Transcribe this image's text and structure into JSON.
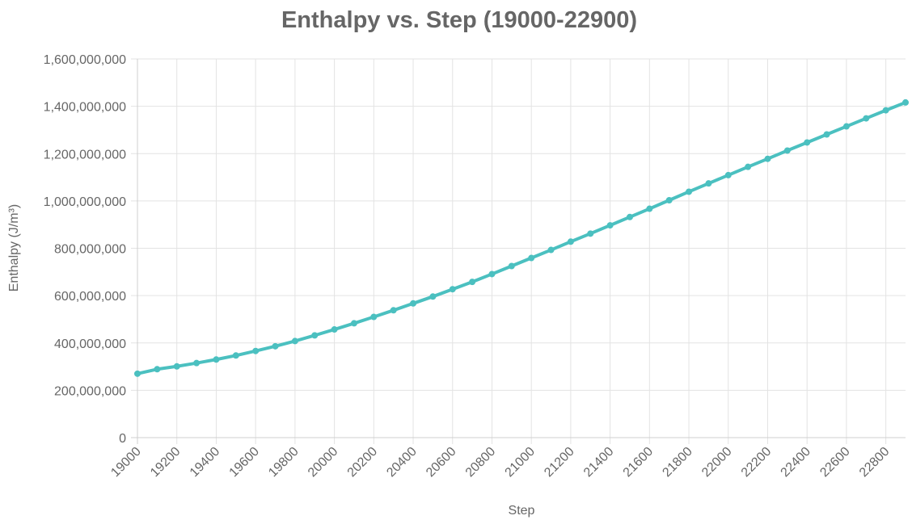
{
  "chart_data": {
    "type": "line",
    "title": "Enthalpy vs. Step (19000-22900)",
    "xlabel": "Step",
    "ylabel": "Enthalpy (J/m³)",
    "xlim": [
      19000,
      22900
    ],
    "ylim": [
      0,
      1600000000
    ],
    "grid": true,
    "legend": "none",
    "x_ticks": [
      "19000",
      "19200",
      "19400",
      "19600",
      "19800",
      "20000",
      "20200",
      "20400",
      "20600",
      "20800",
      "21000",
      "21200",
      "21400",
      "21600",
      "21800",
      "22000",
      "22200",
      "22400",
      "22600",
      "22800"
    ],
    "y_ticks": [
      "0",
      "200,000,000",
      "400,000,000",
      "600,000,000",
      "800,000,000",
      "1,000,000,000",
      "1,200,000,000",
      "1,400,000,000",
      "1,600,000,000"
    ],
    "colors": {
      "line": "#4bc0c0",
      "text": "#666666",
      "grid": "#e3e3e3"
    },
    "x": [
      19000,
      19100,
      19200,
      19300,
      19400,
      19500,
      19600,
      19700,
      19800,
      19900,
      20000,
      20100,
      20200,
      20300,
      20400,
      20500,
      20600,
      20700,
      20800,
      20900,
      21000,
      21100,
      21200,
      21300,
      21400,
      21500,
      21600,
      21700,
      21800,
      21900,
      22000,
      22100,
      22200,
      22300,
      22400,
      22500,
      22600,
      22700,
      22800,
      22900
    ],
    "series": [
      {
        "values": [
          270000000,
          289000000,
          301000000,
          315000000,
          330000000,
          347000000,
          366000000,
          386000000,
          408000000,
          432000000,
          457000000,
          483000000,
          510000000,
          538000000,
          567000000,
          596000000,
          627000000,
          658000000,
          691000000,
          725000000,
          759000000,
          793000000,
          828000000,
          862000000,
          897000000,
          932000000,
          967000000,
          1003000000,
          1039000000,
          1074000000,
          1109000000,
          1144000000,
          1178000000,
          1213000000,
          1247000000,
          1281000000,
          1315000000,
          1349000000,
          1383000000,
          1416000000
        ]
      }
    ]
  }
}
